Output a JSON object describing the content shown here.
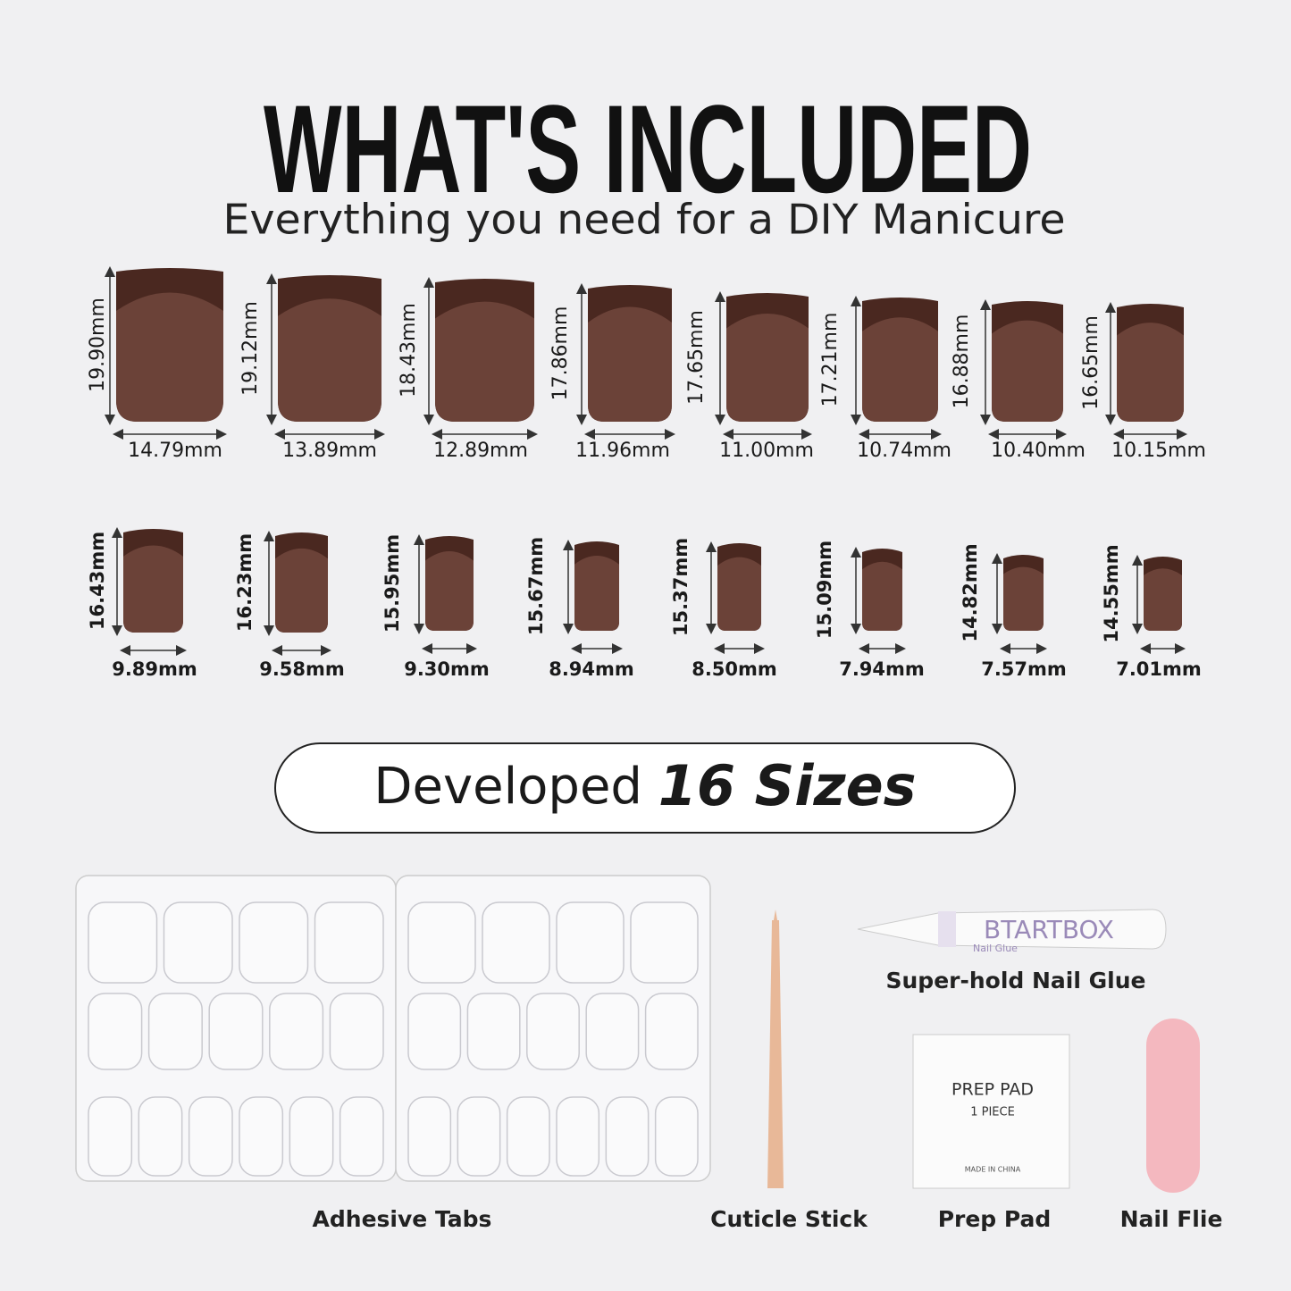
{
  "header": {
    "title": "WHAT'S INCLUDED",
    "subtitle": "Everything you need for a DIY Manicure"
  },
  "nails": [
    {
      "height": "19.90mm",
      "width": "14.79mm"
    },
    {
      "height": "19.12mm",
      "width": "13.89mm"
    },
    {
      "height": "18.43mm",
      "width": "12.89mm"
    },
    {
      "height": "17.86mm",
      "width": "11.96mm"
    },
    {
      "height": "17.65mm",
      "width": "11.00mm"
    },
    {
      "height": "17.21mm",
      "width": "10.74mm"
    },
    {
      "height": "16.88mm",
      "width": "10.40mm"
    },
    {
      "height": "16.65mm",
      "width": "10.15mm"
    },
    {
      "height": "16.43mm",
      "width": "9.89mm"
    },
    {
      "height": "16.23mm",
      "width": "9.58mm"
    },
    {
      "height": "15.95mm",
      "width": "9.30mm"
    },
    {
      "height": "15.67mm",
      "width": "8.94mm"
    },
    {
      "height": "15.37mm",
      "width": "8.50mm"
    },
    {
      "height": "15.09mm",
      "width": "7.94mm"
    },
    {
      "height": "14.82mm",
      "width": "7.57mm"
    },
    {
      "height": "14.55mm",
      "width": "7.01mm"
    }
  ],
  "banner": {
    "text": "Developed",
    "emphasis": "16 Sizes"
  },
  "items": {
    "adhesive_tabs": "Adhesive Tabs",
    "cuticle_stick": "Cuticle Stick",
    "nail_glue": {
      "label": "Super-hold Nail Glue",
      "brand": "BTARTBOX",
      "product": "Nail Glue"
    },
    "prep_pad": {
      "label": "Prep Pad",
      "title": "PREP PAD",
      "count": "1 PIECE",
      "origin": "MADE IN CHINA"
    },
    "nail_file": "Nail Flie"
  }
}
